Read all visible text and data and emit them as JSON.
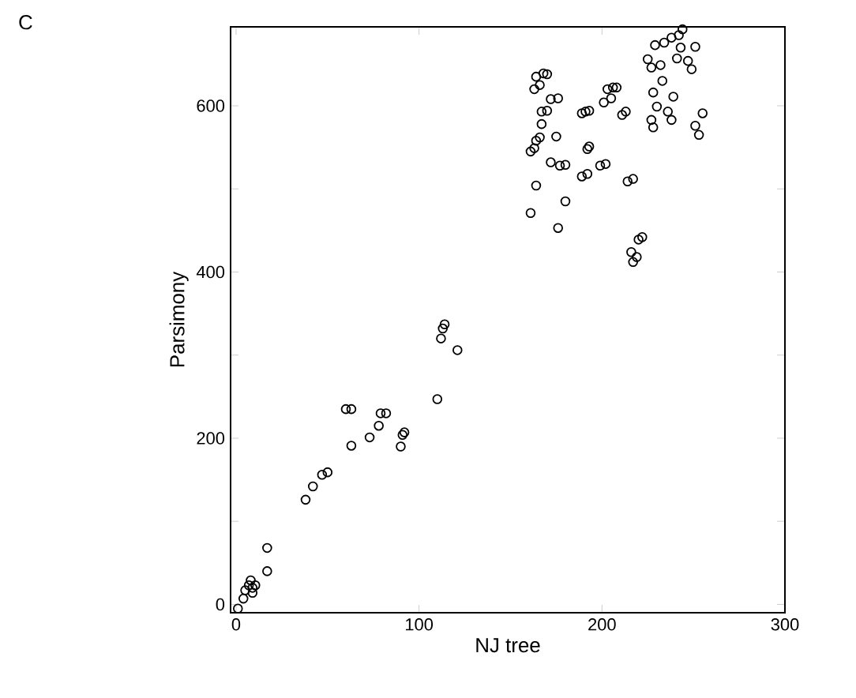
{
  "chart_data": {
    "type": "scatter",
    "xlabel": "NJ tree",
    "ylabel": "Parsimony",
    "annotations": [
      "C"
    ],
    "xlim": [
      -3,
      300
    ],
    "ylim": [
      -10,
      695
    ],
    "xticks": [
      0,
      100,
      200,
      300
    ],
    "yticks": [
      0,
      {
        "value": 100,
        "label": null
      },
      200,
      {
        "value": 300,
        "label": null
      },
      400,
      {
        "value": 500,
        "label": null
      },
      600
    ],
    "grid": false,
    "marker": "circle",
    "series": [
      {
        "color": "#000000",
        "x": [
          1,
          4,
          5,
          7,
          8,
          9,
          10.5,
          9,
          17,
          17,
          38,
          42,
          47,
          50,
          60,
          63,
          63,
          73,
          78,
          79,
          82,
          90,
          91,
          92,
          110,
          112,
          113,
          114,
          121,
          161,
          164,
          161,
          163,
          164,
          166,
          167,
          167,
          170,
          163,
          166,
          164,
          168,
          170,
          172,
          176,
          172,
          175,
          177,
          180,
          176,
          180,
          189,
          192,
          189,
          191,
          193,
          192,
          193,
          199,
          202,
          201,
          203,
          206,
          208,
          205,
          211,
          213,
          214,
          217,
          216,
          217,
          219,
          220,
          222,
          225,
          227,
          229,
          232,
          233,
          228,
          227,
          228,
          230,
          234,
          238,
          239,
          236,
          238,
          241,
          242,
          244,
          243,
          247,
          249,
          251,
          251,
          253,
          255
        ],
        "values": [
          -5,
          7,
          17,
          23,
          29,
          20,
          23,
          14,
          40,
          68,
          126,
          142,
          156,
          159,
          235,
          235,
          191,
          201,
          215,
          230,
          230,
          190,
          204,
          207,
          247,
          320,
          332,
          337,
          306,
          471,
          504,
          545,
          549,
          558,
          562,
          578,
          593,
          594,
          620,
          625,
          635,
          639,
          638,
          608,
          609,
          532,
          563,
          528,
          529,
          453,
          485,
          515,
          518,
          591,
          593,
          594,
          548,
          551,
          528,
          530,
          604,
          620,
          622,
          622,
          609,
          589,
          593,
          509,
          512,
          424,
          412,
          418,
          439,
          442,
          656,
          646,
          673,
          649,
          630,
          616,
          583,
          574,
          599,
          676,
          682,
          611,
          593,
          583,
          657,
          685,
          692,
          670,
          654,
          644,
          671,
          576,
          565,
          591
        ]
      }
    ]
  }
}
